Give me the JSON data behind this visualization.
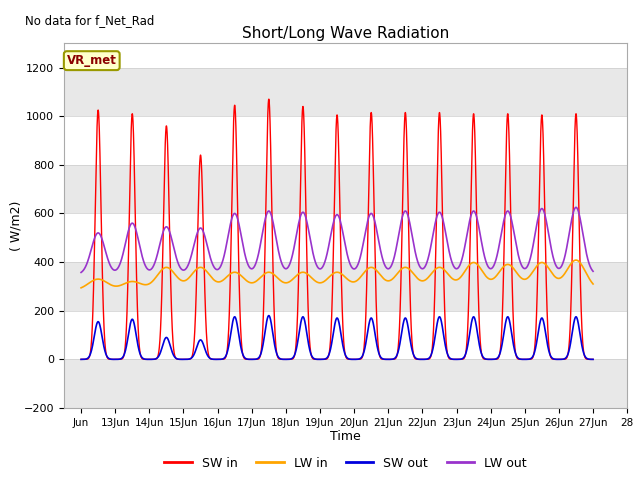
{
  "title": "Short/Long Wave Radiation",
  "xlabel": "Time",
  "ylabel": "( W/m2)",
  "ylim": [
    -200,
    1300
  ],
  "yticks": [
    -200,
    0,
    200,
    400,
    600,
    800,
    1000,
    1200
  ],
  "no_data_text": "No data for f_Net_Rad",
  "station_label": "VR_met",
  "fig_bg_color": "#ffffff",
  "plot_bg_color": "#ffffff",
  "band_color_light": "#ffffff",
  "band_color_dark": "#e8e8e8",
  "sw_in_color": "#ff0000",
  "lw_in_color": "#ffa500",
  "sw_out_color": "#0000dd",
  "lw_out_color": "#9933cc",
  "n_days": 15,
  "pts_per_day": 288,
  "sw_in_peaks": [
    1025,
    1010,
    960,
    840,
    1045,
    1070,
    1040,
    1005,
    1015,
    1015,
    1015,
    1010,
    1010,
    1005,
    1010
  ],
  "lw_in_base": 285,
  "lw_in_peaks": [
    330,
    320,
    378,
    378,
    358,
    358,
    358,
    358,
    378,
    378,
    378,
    398,
    390,
    398,
    408
  ],
  "sw_out_peaks": [
    155,
    165,
    90,
    80,
    175,
    180,
    175,
    170,
    170,
    170,
    175,
    175,
    175,
    170,
    175
  ],
  "lw_out_base": 350,
  "lw_out_peaks": [
    520,
    560,
    545,
    540,
    600,
    610,
    605,
    595,
    600,
    610,
    605,
    610,
    610,
    620,
    625
  ],
  "xtick_labels": [
    "Jun",
    "13Jun",
    "14Jun",
    "15Jun",
    "16Jun",
    "17Jun",
    "18Jun",
    "19Jun",
    "20Jun",
    "21Jun",
    "22Jun",
    "23Jun",
    "24Jun",
    "25Jun",
    "26Jun",
    "27Jun",
    "28"
  ]
}
